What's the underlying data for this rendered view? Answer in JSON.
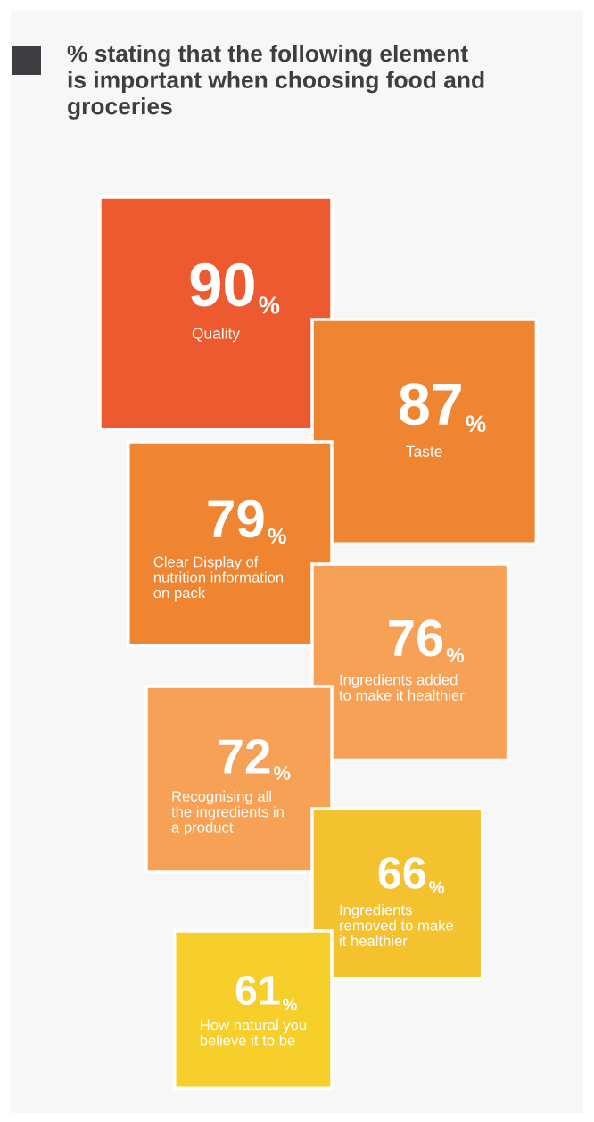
{
  "chart_data": {
    "type": "other",
    "title": "% stating that the following element\nis important when choosing food and\ngroceries",
    "categories": [
      "Quality",
      "Taste",
      "Clear Display of\nnutrition information\non pack",
      "Ingredients added\nto make it healthier",
      "Recognising all\nthe ingredients in\na product",
      "Ingredients\nremoved to make\nit healthier",
      "How natural you\nbelieve it to be"
    ],
    "values": [
      90,
      87,
      79,
      76,
      72,
      66,
      61
    ],
    "value_labels": [
      "90%",
      "87%",
      "79%",
      "76%",
      "72%",
      "66%",
      "61%"
    ],
    "colors": [
      "#ee5a2f",
      "#ef8431",
      "#ef8431",
      "#f7a156",
      "#f7a156",
      "#f4c12f",
      "#f6cf2b"
    ]
  }
}
